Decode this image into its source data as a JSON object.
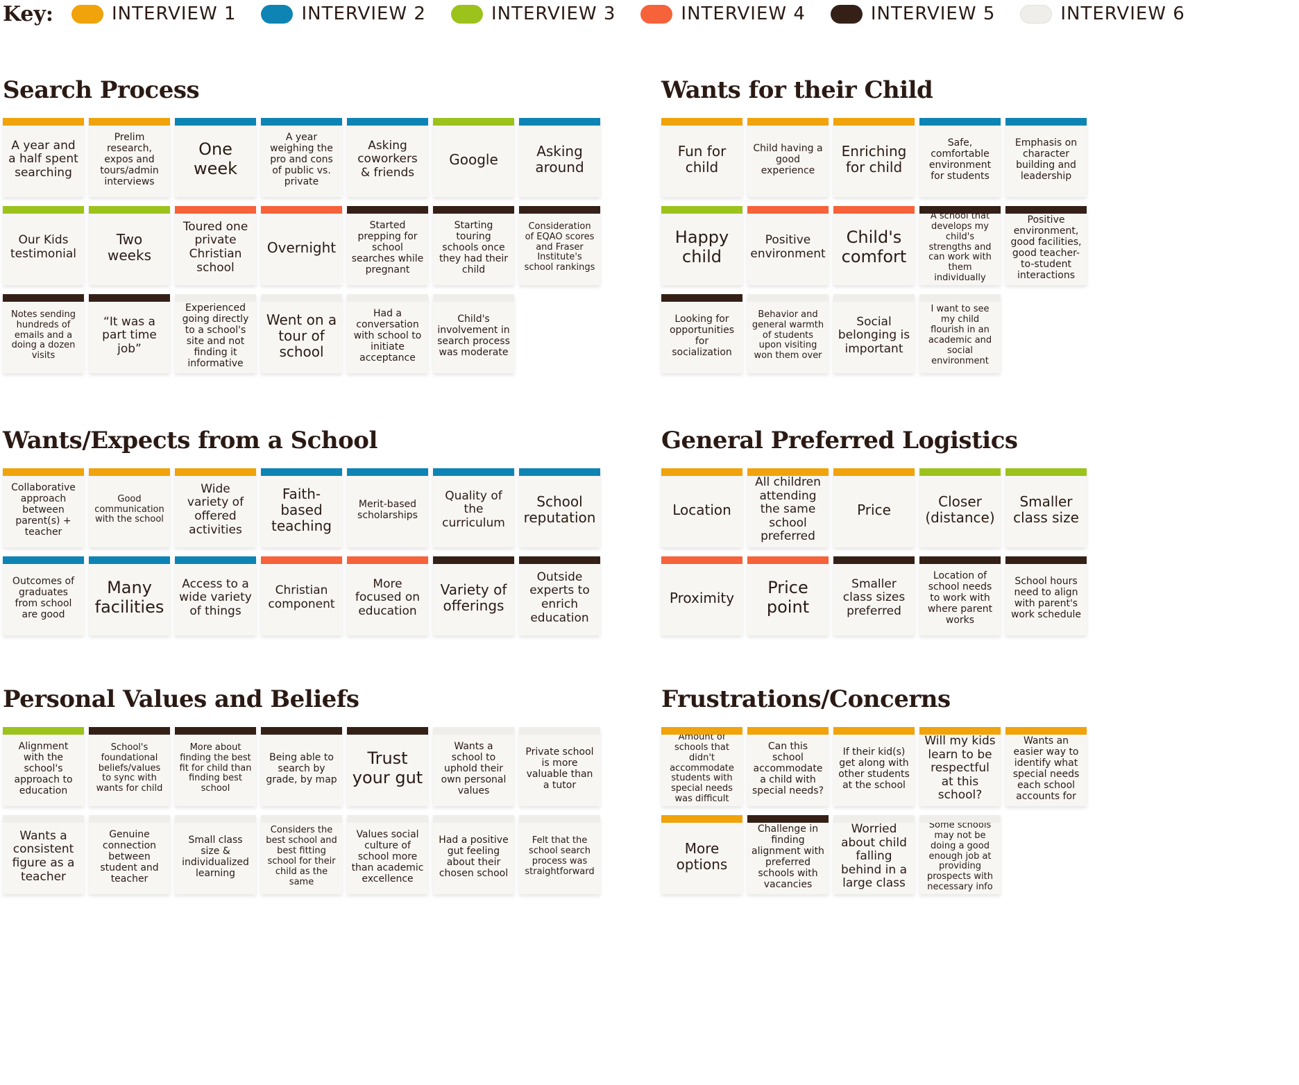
{
  "colors": {
    "interview_1": "#f0a30a",
    "interview_2": "#0e84b5",
    "interview_3": "#9bc31c",
    "interview_4": "#f6623a",
    "interview_5": "#352017",
    "interview_6": "#efeeea"
  },
  "key": {
    "label": "Key:",
    "items": [
      {
        "label": "INTERVIEW 1",
        "color": "interview_1"
      },
      {
        "label": "INTERVIEW 2",
        "color": "interview_2"
      },
      {
        "label": "INTERVIEW 3",
        "color": "interview_3"
      },
      {
        "label": "INTERVIEW 4",
        "color": "interview_4"
      },
      {
        "label": "INTERVIEW 5",
        "color": "interview_5"
      },
      {
        "label": "INTERVIEW 6",
        "color": "interview_6"
      }
    ]
  },
  "sections": {
    "search_process": {
      "title": "Search Process",
      "notes": [
        {
          "text": "A year and a half spent searching",
          "interview": "interview_1",
          "size": "m"
        },
        {
          "text": "Prelim research, expos and tours/admin interviews",
          "interview": "interview_1",
          "size": "s"
        },
        {
          "text": "One week",
          "interview": "interview_2",
          "size": "xl"
        },
        {
          "text": "A year weighing the pro and cons of public vs. private",
          "interview": "interview_2",
          "size": "s"
        },
        {
          "text": "Asking coworkers & friends",
          "interview": "interview_2",
          "size": "m"
        },
        {
          "text": "Google",
          "interview": "interview_3",
          "size": "l"
        },
        {
          "text": "Asking around",
          "interview": "interview_2",
          "size": "l"
        },
        {
          "text": "Our Kids testimonial",
          "interview": "interview_3",
          "size": "m"
        },
        {
          "text": "Two weeks",
          "interview": "interview_3",
          "size": "l"
        },
        {
          "text": "Toured one private Christian school",
          "interview": "interview_4",
          "size": "m"
        },
        {
          "text": "Overnight",
          "interview": "interview_4",
          "size": "l"
        },
        {
          "text": "Started prepping for school searches while pregnant",
          "interview": "interview_5",
          "size": "s"
        },
        {
          "text": "Starting touring schools once they had their child",
          "interview": "interview_5",
          "size": "s"
        },
        {
          "text": "Consideration of EQAO scores and Fraser Institute's school rankings",
          "interview": "interview_5",
          "size": "xs"
        },
        {
          "text": "Notes sending hundreds of emails and a doing a dozen visits",
          "interview": "interview_5",
          "size": "xs"
        },
        {
          "text": "“It was a part time job”",
          "interview": "interview_5",
          "size": "m"
        },
        {
          "text": "Experienced going directly to a school's site and not finding it informative",
          "interview": "interview_6",
          "size": "s"
        },
        {
          "text": "Went on a tour of school",
          "interview": "interview_6",
          "size": "l"
        },
        {
          "text": "Had a conversation with school to initiate acceptance",
          "interview": "interview_6",
          "size": "s"
        },
        {
          "text": "Child's involvement in search process was moderate",
          "interview": "interview_6",
          "size": "s"
        }
      ]
    },
    "wants_child": {
      "title": "Wants for their Child",
      "notes": [
        {
          "text": "Fun for child",
          "interview": "interview_1",
          "size": "l"
        },
        {
          "text": "Child having a good experience",
          "interview": "interview_1",
          "size": "s"
        },
        {
          "text": "Enriching for child",
          "interview": "interview_1",
          "size": "l"
        },
        {
          "text": "Safe, comfortable environment for students",
          "interview": "interview_2",
          "size": "s"
        },
        {
          "text": "Emphasis on character building and leadership",
          "interview": "interview_2",
          "size": "s"
        },
        {
          "text": "Happy child",
          "interview": "interview_3",
          "size": "xl"
        },
        {
          "text": "Positive environment",
          "interview": "interview_4",
          "size": "m"
        },
        {
          "text": "Child's comfort",
          "interview": "interview_4",
          "size": "xl"
        },
        {
          "text": "A school that develops my child's strengths and can work with them individually",
          "interview": "interview_5",
          "size": "xs"
        },
        {
          "text": "Positive environment, good facilities, good teacher-to-student interactions",
          "interview": "interview_5",
          "size": "s"
        },
        {
          "text": "Looking for opportunities for socialization",
          "interview": "interview_5",
          "size": "s"
        },
        {
          "text": "Behavior and general warmth of students upon visiting won them over",
          "interview": "interview_6",
          "size": "xs"
        },
        {
          "text": "Social belonging is important",
          "interview": "interview_6",
          "size": "m"
        },
        {
          "text": "I want to see my child flourish in an academic and social environment",
          "interview": "interview_6",
          "size": "xs"
        }
      ]
    },
    "wants_school": {
      "title": "Wants/Expects from a School",
      "notes": [
        {
          "text": "Collaborative approach between parent(s) + teacher",
          "interview": "interview_1",
          "size": "s"
        },
        {
          "text": "Good communication with the school",
          "interview": "interview_1",
          "size": "xs"
        },
        {
          "text": "Wide variety of offered activities",
          "interview": "interview_1",
          "size": "m"
        },
        {
          "text": "Faith-based teaching",
          "interview": "interview_2",
          "size": "l"
        },
        {
          "text": "Merit-based scholarships",
          "interview": "interview_2",
          "size": "s"
        },
        {
          "text": "Quality of the curriculum",
          "interview": "interview_2",
          "size": "m"
        },
        {
          "text": "School reputation",
          "interview": "interview_2",
          "size": "l"
        },
        {
          "text": "Outcomes of graduates from school are good",
          "interview": "interview_2",
          "size": "s"
        },
        {
          "text": "Many facilities",
          "interview": "interview_2",
          "size": "xl"
        },
        {
          "text": "Access to a wide variety of things",
          "interview": "interview_2",
          "size": "m"
        },
        {
          "text": "Christian component",
          "interview": "interview_4",
          "size": "m"
        },
        {
          "text": "More focused on education",
          "interview": "interview_4",
          "size": "m"
        },
        {
          "text": "Variety of offerings",
          "interview": "interview_5",
          "size": "l"
        },
        {
          "text": "Outside experts to enrich education",
          "interview": "interview_5",
          "size": "m"
        }
      ]
    },
    "logistics": {
      "title": "General Preferred Logistics",
      "notes": [
        {
          "text": "Location",
          "interview": "interview_1",
          "size": "l"
        },
        {
          "text": "All children attending the same school preferred",
          "interview": "interview_1",
          "size": "m"
        },
        {
          "text": "Price",
          "interview": "interview_1",
          "size": "l"
        },
        {
          "text": "Closer (distance)",
          "interview": "interview_3",
          "size": "l"
        },
        {
          "text": "Smaller class size",
          "interview": "interview_3",
          "size": "l"
        },
        {
          "text": "Proximity",
          "interview": "interview_4",
          "size": "l"
        },
        {
          "text": "Price point",
          "interview": "interview_4",
          "size": "xl"
        },
        {
          "text": "Smaller class sizes preferred",
          "interview": "interview_5",
          "size": "m"
        },
        {
          "text": "Location of school needs to work with where parent works",
          "interview": "interview_5",
          "size": "s"
        },
        {
          "text": "School hours need to align with parent's work schedule",
          "interview": "interview_5",
          "size": "s"
        }
      ]
    },
    "values": {
      "title": "Personal Values and Beliefs",
      "notes": [
        {
          "text": "Alignment with the school's approach to education",
          "interview": "interview_3",
          "size": "s"
        },
        {
          "text": "School's foundational beliefs/values to sync with wants for child",
          "interview": "interview_5",
          "size": "xs"
        },
        {
          "text": "More about finding the best fit for child than finding best school",
          "interview": "interview_5",
          "size": "xs"
        },
        {
          "text": "Being able to search by grade, by map",
          "interview": "interview_5",
          "size": "s"
        },
        {
          "text": "Trust your gut",
          "interview": "interview_5",
          "size": "xl"
        },
        {
          "text": "Wants a school to uphold their own personal values",
          "interview": "interview_6",
          "size": "s"
        },
        {
          "text": "Private school is more valuable than a tutor",
          "interview": "interview_6",
          "size": "s"
        },
        {
          "text": "Wants a consistent figure as a teacher",
          "interview": "interview_6",
          "size": "m"
        },
        {
          "text": "Genuine connection between student and teacher",
          "interview": "interview_6",
          "size": "s"
        },
        {
          "text": "Small class size & individualized learning",
          "interview": "interview_6",
          "size": "s"
        },
        {
          "text": "Considers the best school and best fitting school for their child as the same",
          "interview": "interview_6",
          "size": "xs"
        },
        {
          "text": "Values social culture of school more than academic excellence",
          "interview": "interview_6",
          "size": "s"
        },
        {
          "text": "Had a positive gut feeling about their chosen school",
          "interview": "interview_6",
          "size": "s"
        },
        {
          "text": "Felt that the school search process was straightforward",
          "interview": "interview_6",
          "size": "xs"
        }
      ]
    },
    "frustrations": {
      "title": "Frustrations/Concerns",
      "notes": [
        {
          "text": "Amount of schools that didn't accommodate students with special needs was difficult",
          "interview": "interview_1",
          "size": "xs"
        },
        {
          "text": "Can this school accommodate a child with special needs?",
          "interview": "interview_1",
          "size": "s"
        },
        {
          "text": "If their kid(s) get along with other students at the school",
          "interview": "interview_1",
          "size": "s"
        },
        {
          "text": "Will my kids learn to be respectful at this school?",
          "interview": "interview_1",
          "size": "m"
        },
        {
          "text": "Wants an easier way to identify what special needs each school accounts for",
          "interview": "interview_1",
          "size": "s"
        },
        {
          "text": "More options",
          "interview": "interview_1",
          "size": "l"
        },
        {
          "text": "Challenge in finding alignment with preferred schools with vacancies",
          "interview": "interview_5",
          "size": "s"
        },
        {
          "text": "Worried about child falling behind in a large class",
          "interview": "interview_6",
          "size": "m"
        },
        {
          "text": "Some schools may not be doing a good enough job at providing prospects with necessary info",
          "interview": "interview_6",
          "size": "xs"
        }
      ]
    }
  }
}
